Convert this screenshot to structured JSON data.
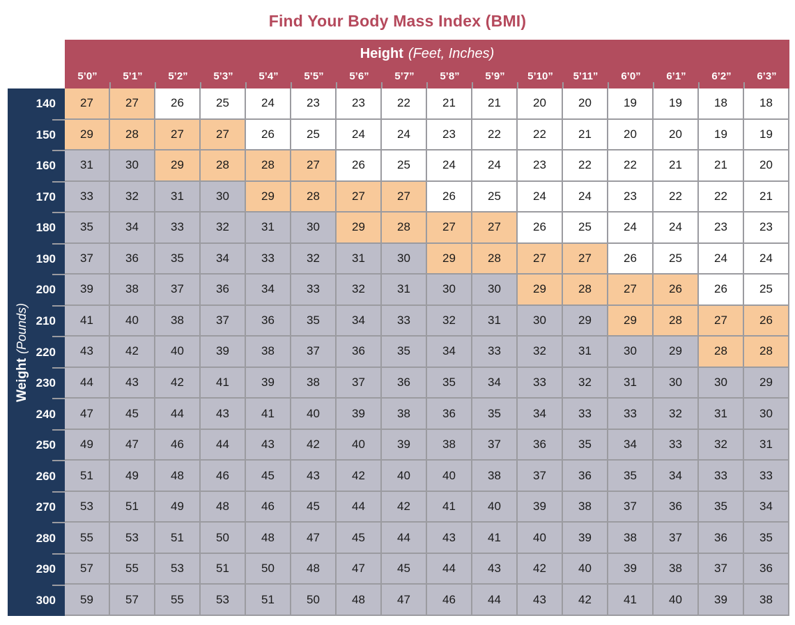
{
  "title": "Find Your Body Mass Index (BMI)",
  "colors": {
    "header_maroon": "#b24d5e",
    "weight_column_navy": "#20395c",
    "cell_orange": "#f8c99a",
    "cell_gray": "#bdbdc9",
    "cell_white": "#ffffff",
    "grid_line": "#9b9ba0",
    "title_text": "#b5495c",
    "cell_text": "#1a1a1a"
  },
  "chart_data": {
    "type": "heatmap",
    "title": "Find Your Body Mass Index (BMI)",
    "x_axis": {
      "label": "Height",
      "sublabel": "(Feet, Inches)",
      "categories": [
        "5’0”",
        "5’1”",
        "5’2”",
        "5’3”",
        "5’4”",
        "5’5”",
        "5’6”",
        "5’7”",
        "5’8”",
        "5’9”",
        "5’10”",
        "5’11”",
        "6’0”",
        "6’1”",
        "6’2”",
        "6’3”"
      ]
    },
    "y_axis": {
      "label": "Weight",
      "sublabel": "(Pounds)",
      "categories": [
        "140",
        "150",
        "160",
        "170",
        "180",
        "190",
        "200",
        "210",
        "220",
        "230",
        "240",
        "250",
        "260",
        "270",
        "280",
        "290",
        "300"
      ]
    },
    "color_key": {
      "W": "#ffffff",
      "O": "#f8c99a",
      "G": "#bdbdc9"
    },
    "rows": [
      {
        "weight": "140",
        "values": [
          27,
          27,
          26,
          25,
          24,
          23,
          23,
          22,
          21,
          21,
          20,
          20,
          19,
          19,
          18,
          18
        ],
        "colors": "OOWWWWWWWWWWWWWW"
      },
      {
        "weight": "150",
        "values": [
          29,
          28,
          27,
          27,
          26,
          25,
          24,
          24,
          23,
          22,
          22,
          21,
          20,
          20,
          19,
          19
        ],
        "colors": "OOOOWWWWWWWWWWWW"
      },
      {
        "weight": "160",
        "values": [
          31,
          30,
          29,
          28,
          28,
          27,
          26,
          25,
          24,
          24,
          23,
          22,
          22,
          21,
          21,
          20
        ],
        "colors": "GGOOOOWWWWWWWWWW"
      },
      {
        "weight": "170",
        "values": [
          33,
          32,
          31,
          30,
          29,
          28,
          27,
          27,
          26,
          25,
          24,
          24,
          23,
          22,
          22,
          21
        ],
        "colors": "GGGGOOOOWWWWWWWW"
      },
      {
        "weight": "180",
        "values": [
          35,
          34,
          33,
          32,
          31,
          30,
          29,
          28,
          27,
          27,
          26,
          25,
          24,
          24,
          23,
          23
        ],
        "colors": "GGGGGGOOOOWWWWWW"
      },
      {
        "weight": "190",
        "values": [
          37,
          36,
          35,
          34,
          33,
          32,
          31,
          30,
          29,
          28,
          27,
          27,
          26,
          25,
          24,
          24
        ],
        "colors": "GGGGGGGGOOOOWWWW"
      },
      {
        "weight": "200",
        "values": [
          39,
          38,
          37,
          36,
          34,
          33,
          32,
          31,
          30,
          30,
          29,
          28,
          27,
          26,
          26,
          25
        ],
        "colors": "GGGGGGGGGGOOOOWW"
      },
      {
        "weight": "210",
        "values": [
          41,
          40,
          38,
          37,
          36,
          35,
          34,
          33,
          32,
          31,
          30,
          29,
          29,
          28,
          27,
          26
        ],
        "colors": "GGGGGGGGGGGGOOOO"
      },
      {
        "weight": "220",
        "values": [
          43,
          42,
          40,
          39,
          38,
          37,
          36,
          35,
          34,
          33,
          32,
          31,
          30,
          29,
          28,
          28
        ],
        "colors": "GGGGGGGGGGGGGGOO"
      },
      {
        "weight": "230",
        "values": [
          44,
          43,
          42,
          41,
          39,
          38,
          37,
          36,
          35,
          34,
          33,
          32,
          31,
          30,
          30,
          29
        ],
        "colors": "GGGGGGGGGGGGGGGG"
      },
      {
        "weight": "240",
        "values": [
          47,
          45,
          44,
          43,
          41,
          40,
          39,
          38,
          36,
          35,
          34,
          33,
          33,
          32,
          31,
          30
        ],
        "colors": "GGGGGGGGGGGGGGGG"
      },
      {
        "weight": "250",
        "values": [
          49,
          47,
          46,
          44,
          43,
          42,
          40,
          39,
          38,
          37,
          36,
          35,
          34,
          33,
          32,
          31
        ],
        "colors": "GGGGGGGGGGGGGGGG"
      },
      {
        "weight": "260",
        "values": [
          51,
          49,
          48,
          46,
          45,
          43,
          42,
          40,
          40,
          38,
          37,
          36,
          35,
          34,
          33,
          33
        ],
        "colors": "GGGGGGGGGGGGGGGG"
      },
      {
        "weight": "270",
        "values": [
          53,
          51,
          49,
          48,
          46,
          45,
          44,
          42,
          41,
          40,
          39,
          38,
          37,
          36,
          35,
          34
        ],
        "colors": "GGGGGGGGGGGGGGGG"
      },
      {
        "weight": "280",
        "values": [
          55,
          53,
          51,
          50,
          48,
          47,
          45,
          44,
          43,
          41,
          40,
          39,
          38,
          37,
          36,
          35
        ],
        "colors": "GGGGGGGGGGGGGGGG"
      },
      {
        "weight": "290",
        "values": [
          57,
          55,
          53,
          51,
          50,
          48,
          47,
          45,
          44,
          43,
          42,
          40,
          39,
          38,
          37,
          36
        ],
        "colors": "GGGGGGGGGGGGGGGG"
      },
      {
        "weight": "300",
        "values": [
          59,
          57,
          55,
          53,
          51,
          50,
          48,
          47,
          46,
          44,
          43,
          42,
          41,
          40,
          39,
          38
        ],
        "colors": "GGGGGGGGGGGGGGGG"
      }
    ]
  }
}
